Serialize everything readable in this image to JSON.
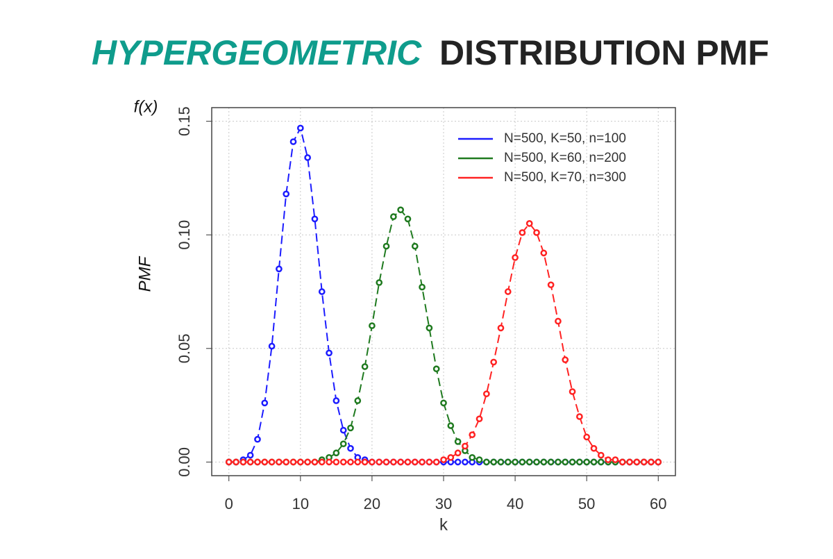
{
  "chart_data": {
    "type": "line",
    "title": [
      "HYPERGEOMETRIC",
      "DISTRIBUTION PMF"
    ],
    "title_colors": [
      "#0f9c8c",
      "#232323"
    ],
    "annotation": "f(x)",
    "x_label": "k",
    "y_label": "PMF",
    "x": [
      0,
      1,
      2,
      3,
      4,
      5,
      6,
      7,
      8,
      9,
      10,
      11,
      12,
      13,
      14,
      15,
      16,
      17,
      18,
      19,
      20,
      21,
      22,
      23,
      24,
      25,
      26,
      27,
      28,
      29,
      30,
      31,
      32,
      33,
      34,
      35,
      36,
      37,
      38,
      39,
      40,
      41,
      42,
      43,
      44,
      45,
      46,
      47,
      48,
      49,
      50,
      51,
      52,
      53,
      54,
      55,
      56,
      57,
      58,
      59,
      60
    ],
    "series": [
      {
        "name": "N=500, K=50, n=100",
        "color": "#1c1cff",
        "values": [
          0,
          0,
          0.001,
          0.003,
          0.01,
          0.026,
          0.051,
          0.085,
          0.118,
          0.141,
          0.147,
          0.134,
          0.107,
          0.075,
          0.048,
          0.027,
          0.014,
          0.006,
          0.002,
          0.001,
          0,
          0,
          0,
          0,
          0,
          0,
          0,
          0,
          0,
          0,
          0,
          0,
          0,
          0,
          0,
          0,
          0,
          0,
          0,
          0,
          0,
          0,
          0,
          0,
          0,
          0,
          0,
          0,
          0,
          0,
          0,
          0,
          0,
          0,
          0,
          0,
          0,
          0,
          0,
          0,
          0
        ]
      },
      {
        "name": "N=500, K=60, n=200",
        "color": "#1f7a1f",
        "values": [
          0,
          0,
          0,
          0,
          0,
          0,
          0,
          0,
          0,
          0,
          0,
          0,
          0,
          0.001,
          0.002,
          0.004,
          0.008,
          0.015,
          0.027,
          0.042,
          0.06,
          0.079,
          0.095,
          0.108,
          0.111,
          0.107,
          0.095,
          0.077,
          0.059,
          0.041,
          0.026,
          0.016,
          0.009,
          0.005,
          0.002,
          0.001,
          0,
          0,
          0,
          0,
          0,
          0,
          0,
          0,
          0,
          0,
          0,
          0,
          0,
          0,
          0,
          0,
          0,
          0,
          0,
          0,
          0,
          0,
          0,
          0,
          0
        ]
      },
      {
        "name": "N=500, K=70, n=300",
        "color": "#ff2222",
        "values": [
          0,
          0,
          0,
          0,
          0,
          0,
          0,
          0,
          0,
          0,
          0,
          0,
          0,
          0,
          0,
          0,
          0,
          0,
          0,
          0,
          0,
          0,
          0,
          0,
          0,
          0,
          0,
          0,
          0,
          0,
          0.001,
          0.002,
          0.004,
          0.007,
          0.012,
          0.019,
          0.03,
          0.044,
          0.059,
          0.075,
          0.09,
          0.101,
          0.105,
          0.101,
          0.092,
          0.078,
          0.062,
          0.045,
          0.031,
          0.02,
          0.011,
          0.006,
          0.003,
          0.001,
          0.001,
          0,
          0,
          0,
          0,
          0,
          0
        ]
      }
    ],
    "xlim": [
      -2.4,
      62.4
    ],
    "ylim": [
      -0.006,
      0.156
    ],
    "xticks": [
      0,
      10,
      20,
      30,
      40,
      50,
      60
    ],
    "yticks": [
      {
        "value": 0,
        "label": "0.00"
      },
      0.05,
      {
        "value": 0.1,
        "label": "0.10"
      },
      0.15
    ],
    "grid": true,
    "legend": "top-right"
  }
}
